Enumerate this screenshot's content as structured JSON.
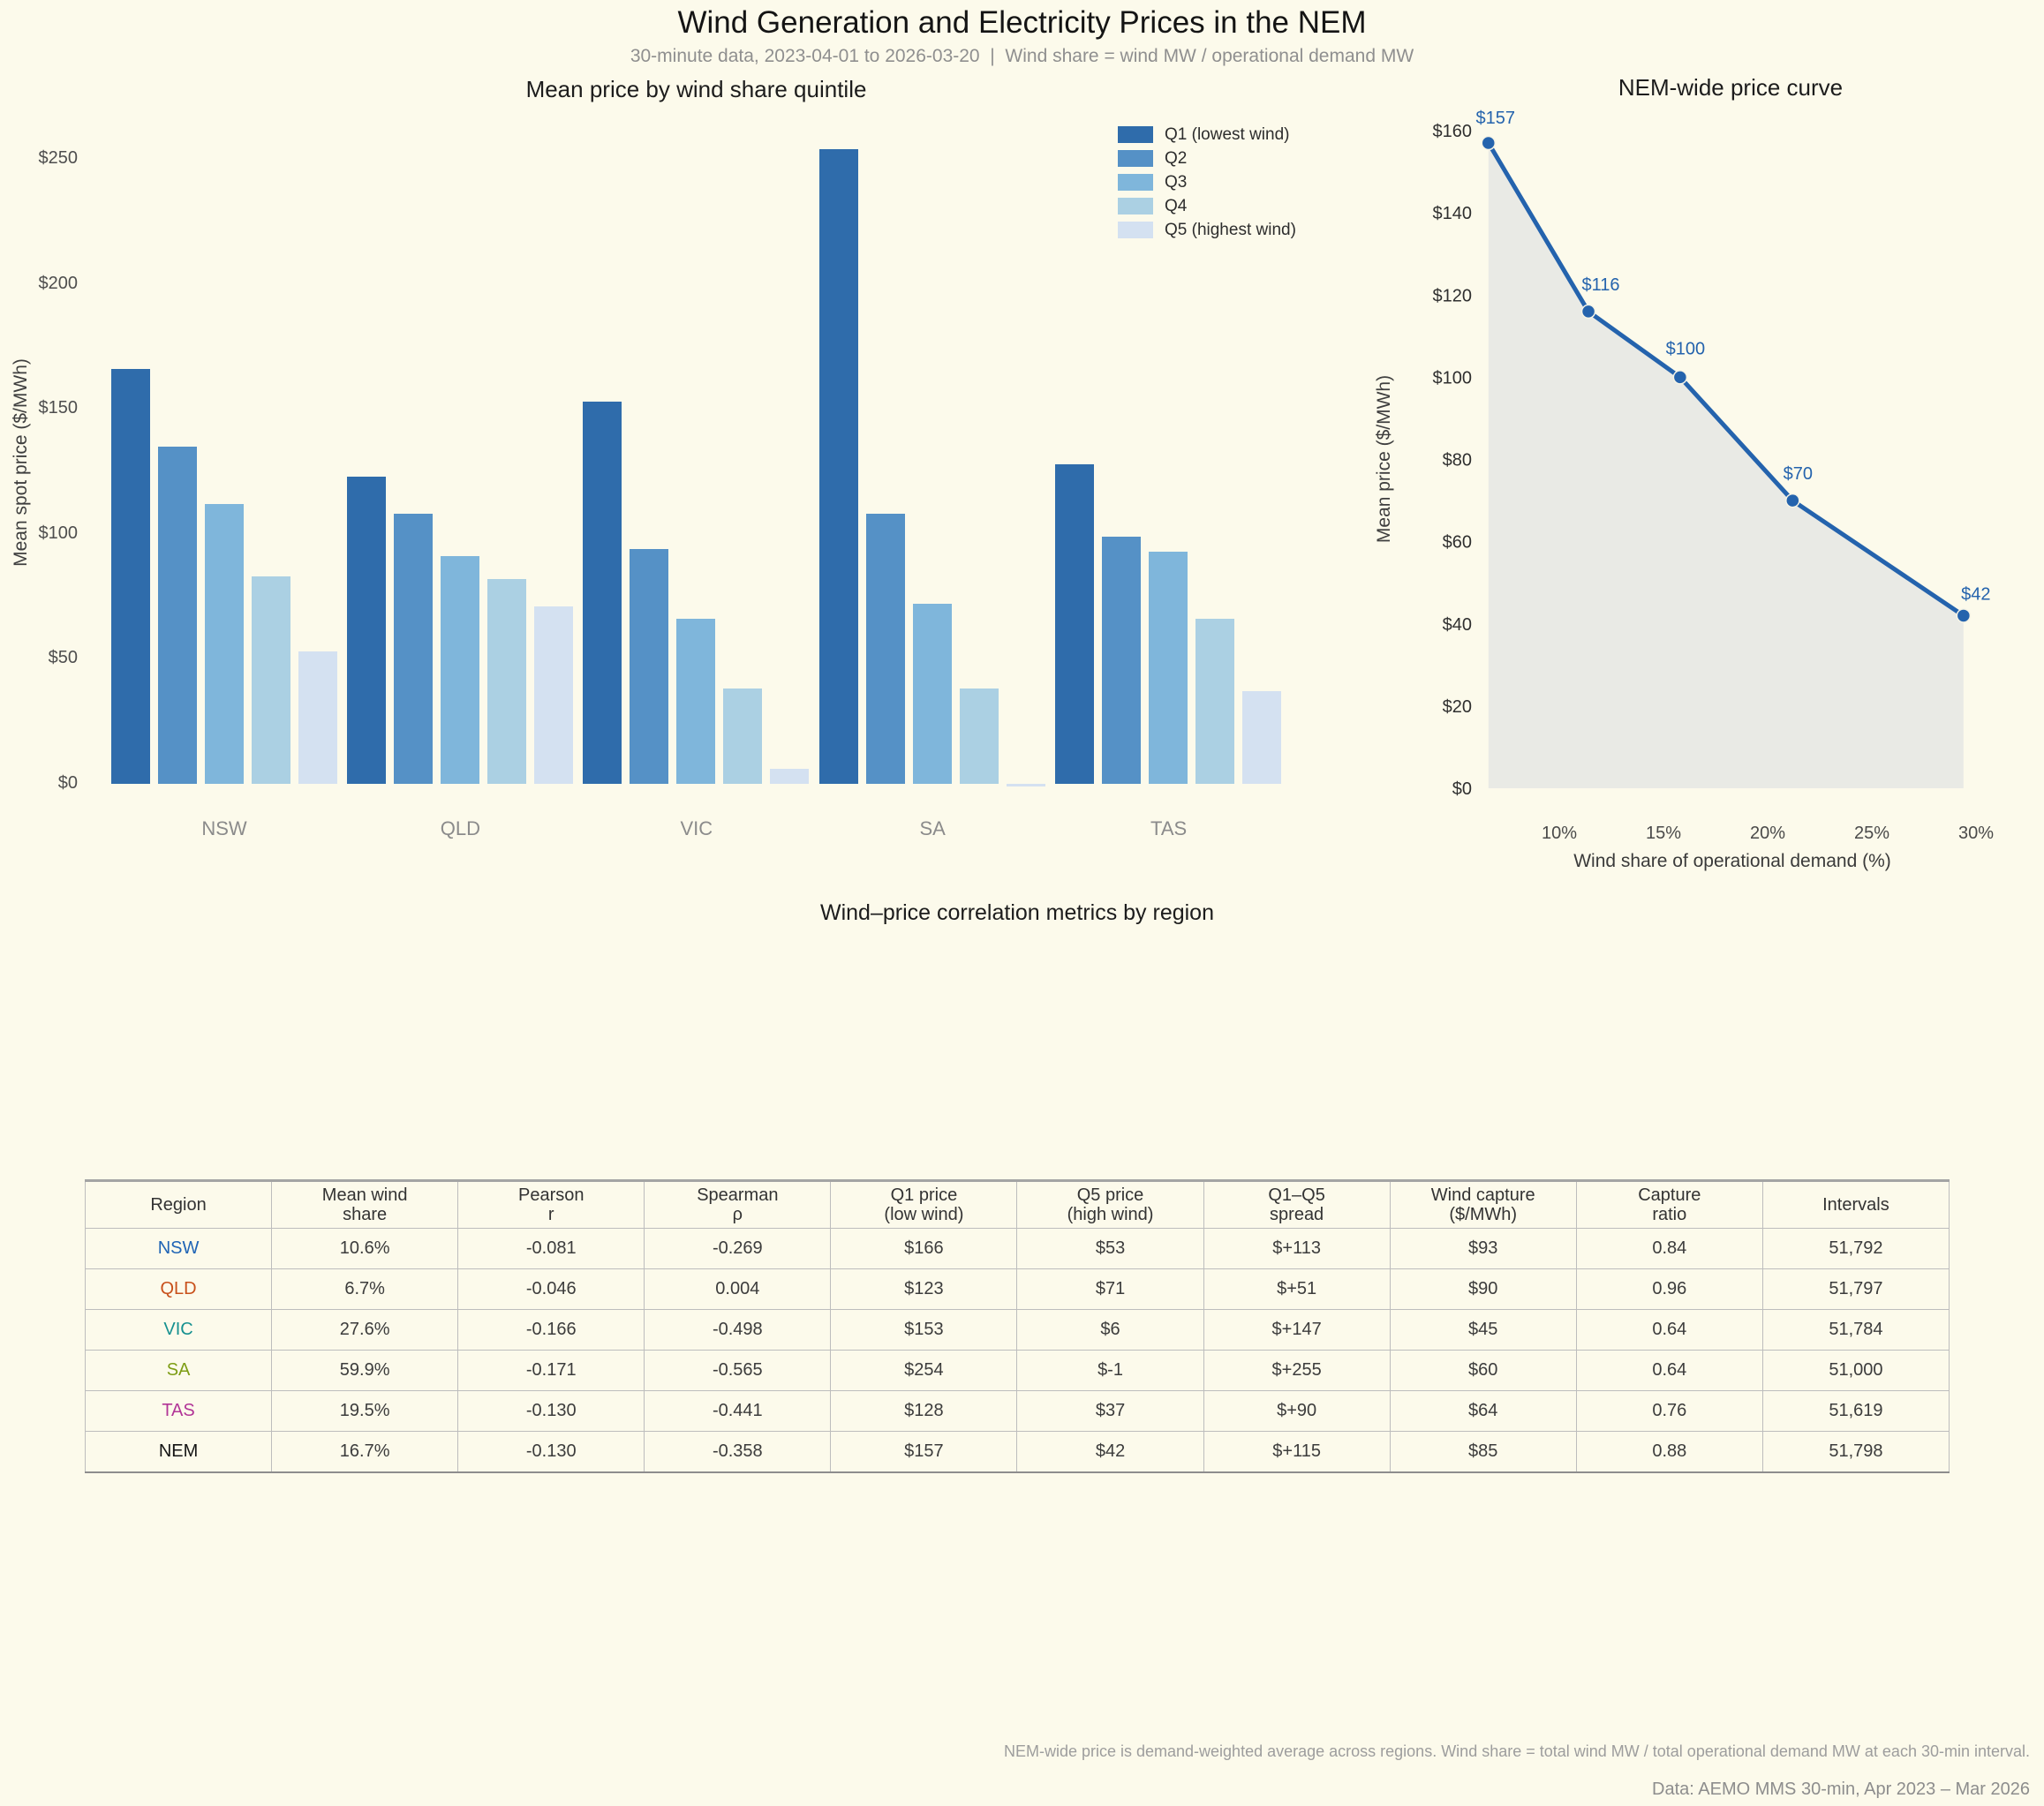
{
  "page": {
    "title": "Wind Generation and Electricity Prices in the NEM",
    "subtitle": "30-minute data, 2023-04-01 to 2026-03-20  |  Wind share = wind MW / operational demand MW",
    "footnote": "NEM-wide price is demand-weighted average across regions. Wind share = total wind MW / total operational demand MW at each 30-min interval.",
    "source": "Data: AEMO MMS 30-min, Apr 2023 – Mar 2026",
    "background": "#fcfaeb"
  },
  "chart_data": [
    {
      "type": "bar",
      "title": "Mean price by wind share quintile",
      "categories": [
        "NSW",
        "QLD",
        "VIC",
        "SA",
        "TAS"
      ],
      "series": [
        {
          "name": "Q1 (lowest wind)",
          "color": "#2f6cab",
          "values": [
            166,
            123,
            153,
            254,
            128
          ]
        },
        {
          "name": "Q2",
          "color": "#5591c6",
          "values": [
            135,
            108,
            94,
            108,
            99
          ]
        },
        {
          "name": "Q3",
          "color": "#7fb6db",
          "values": [
            112,
            91,
            66,
            72,
            93
          ]
        },
        {
          "name": "Q4",
          "color": "#abd0e3",
          "values": [
            83,
            82,
            38,
            38,
            66
          ]
        },
        {
          "name": "Q5 (highest wind)",
          "color": "#d4e1f1",
          "values": [
            53,
            71,
            6,
            -1,
            37
          ]
        }
      ],
      "ylabel": "Mean spot price ($/MWh)",
      "yticks": [
        0,
        50,
        100,
        150,
        200,
        250
      ],
      "ytick_labels": [
        "$0",
        "$50",
        "$100",
        "$150",
        "$200",
        "$250"
      ],
      "ylim": [
        0,
        257
      ],
      "grid": false,
      "legend_position": "upper right"
    },
    {
      "type": "line",
      "title": "NEM-wide price curve",
      "x": [
        6.6,
        11.4,
        15.8,
        21.2,
        29.4
      ],
      "y": [
        157,
        116,
        100,
        70,
        42
      ],
      "point_labels": [
        "$157",
        "$116",
        "$100",
        "$70",
        "$42"
      ],
      "xlabel": "Wind share of operational demand (%)",
      "ylabel": "Mean price ($/MWh)",
      "xticks": [
        10,
        15,
        20,
        25,
        30
      ],
      "xtick_labels": [
        "10%",
        "15%",
        "20%",
        "25%",
        "30%"
      ],
      "yticks": [
        0,
        20,
        40,
        60,
        80,
        100,
        120,
        140,
        160
      ],
      "ytick_labels": [
        "$0",
        "$20",
        "$40",
        "$60",
        "$80",
        "$100",
        "$120",
        "$140",
        "$160"
      ],
      "xlim": [
        6.6,
        30.8
      ],
      "ylim": [
        0,
        160
      ],
      "area": true,
      "line_color": "#2463ad",
      "fill_color": "#e9eae5",
      "grid": false,
      "legend_position": "none"
    }
  ],
  "table": {
    "title": "Wind–price correlation metrics by region",
    "headers": [
      {
        "lines": [
          "Region"
        ]
      },
      {
        "lines": [
          "Mean wind",
          "share"
        ]
      },
      {
        "lines": [
          "Pearson",
          "r"
        ]
      },
      {
        "lines": [
          "Spearman",
          "ρ"
        ]
      },
      {
        "lines": [
          "Q1 price",
          "(low wind)"
        ]
      },
      {
        "lines": [
          "Q5 price",
          "(high wind)"
        ]
      },
      {
        "lines": [
          "Q1–Q5",
          "spread"
        ]
      },
      {
        "lines": [
          "Wind capture",
          "($/MWh)"
        ]
      },
      {
        "lines": [
          "Capture",
          "ratio"
        ]
      },
      {
        "lines": [
          "Intervals"
        ]
      }
    ],
    "rows": [
      {
        "region": "NSW",
        "color": "#1f64b5",
        "emphasis": false,
        "cells": [
          "10.6%",
          "-0.081",
          "-0.269",
          "$166",
          "$53",
          "$+113",
          "$93",
          "0.84",
          "51,792"
        ]
      },
      {
        "region": "QLD",
        "color": "#c8501b",
        "emphasis": false,
        "cells": [
          "6.7%",
          "-0.046",
          "0.004",
          "$123",
          "$71",
          "$+51",
          "$90",
          "0.96",
          "51,797"
        ]
      },
      {
        "region": "VIC",
        "color": "#169190",
        "emphasis": false,
        "cells": [
          "27.6%",
          "-0.166",
          "-0.498",
          "$153",
          "$6",
          "$+147",
          "$45",
          "0.64",
          "51,784"
        ]
      },
      {
        "region": "SA",
        "color": "#7e9d15",
        "emphasis": false,
        "cells": [
          "59.9%",
          "-0.171",
          "-0.565",
          "$254",
          "$-1",
          "$+255",
          "$60",
          "0.64",
          "51,000"
        ]
      },
      {
        "region": "TAS",
        "color": "#b23597",
        "emphasis": false,
        "cells": [
          "19.5%",
          "-0.130",
          "-0.441",
          "$128",
          "$37",
          "$+90",
          "$64",
          "0.76",
          "51,619"
        ]
      },
      {
        "region": "NEM",
        "color": "#141414",
        "emphasis": true,
        "cells": [
          "16.7%",
          "-0.130",
          "-0.358",
          "$157",
          "$42",
          "$+115",
          "$85",
          "0.88",
          "51,798"
        ]
      }
    ]
  }
}
